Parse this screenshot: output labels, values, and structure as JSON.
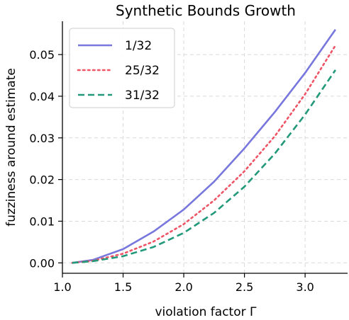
{
  "chart_data": {
    "type": "line",
    "title": "Synthetic Bounds Growth",
    "xlabel": "violation factor Γ",
    "ylabel": "fuzziness around estimate",
    "xlim": [
      1.0,
      3.35
    ],
    "ylim": [
      -0.0025,
      0.058
    ],
    "xticks": [
      1.0,
      1.5,
      2.0,
      2.5,
      3.0
    ],
    "xtick_labels": [
      "1.0",
      "1.5",
      "2.0",
      "2.5",
      "3.0"
    ],
    "yticks": [
      0.0,
      0.01,
      0.02,
      0.03,
      0.04,
      0.05
    ],
    "ytick_labels": [
      "0.00",
      "0.01",
      "0.02",
      "0.03",
      "0.04",
      "0.05"
    ],
    "grid": true,
    "legend_position": "top-left",
    "x": [
      1.08,
      1.25,
      1.5,
      1.75,
      2.0,
      2.25,
      2.5,
      2.75,
      3.0,
      3.25
    ],
    "series": [
      {
        "name": "1/32",
        "color": "#7777dd",
        "style": "solid",
        "values": [
          0.0,
          0.0007,
          0.0033,
          0.0075,
          0.0128,
          0.0195,
          0.0275,
          0.0362,
          0.0456,
          0.056
        ]
      },
      {
        "name": "25/32",
        "color": "#ee5566",
        "style": "dotted",
        "values": [
          0.0,
          0.0005,
          0.0022,
          0.0051,
          0.0093,
          0.015,
          0.022,
          0.0304,
          0.0405,
          0.0522
        ]
      },
      {
        "name": "31/32",
        "color": "#22997a",
        "style": "dashed",
        "values": [
          0.0,
          0.0004,
          0.0016,
          0.0038,
          0.0072,
          0.012,
          0.0183,
          0.0262,
          0.0356,
          0.0463
        ]
      }
    ]
  }
}
